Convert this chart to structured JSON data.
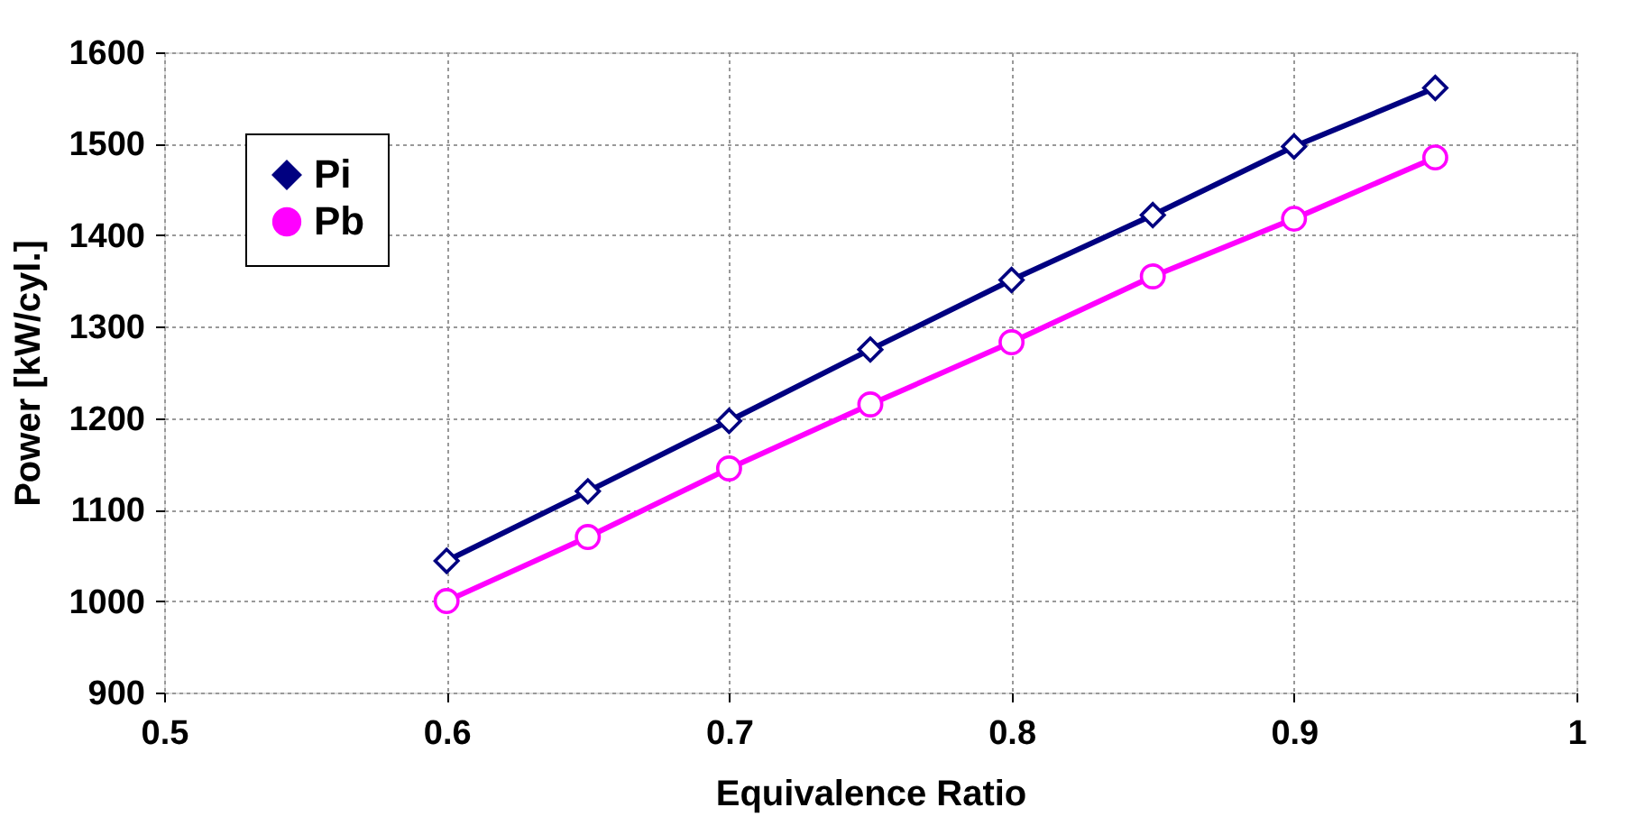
{
  "chart_data": {
    "type": "line",
    "xlabel": "Equivalence Ratio",
    "ylabel": "Power [kW/cyl.]",
    "x": [
      0.6,
      0.65,
      0.7,
      0.75,
      0.8,
      0.85,
      0.9,
      0.95
    ],
    "series": [
      {
        "name": "Pi",
        "color": "#000080",
        "marker": "diamond",
        "values": [
          1044,
          1120,
          1197,
          1275,
          1351,
          1422,
          1497,
          1561
        ]
      },
      {
        "name": "Pb",
        "color": "#ff00ff",
        "marker": "circle",
        "values": [
          1000,
          1070,
          1145,
          1215,
          1283,
          1355,
          1418,
          1485
        ]
      }
    ],
    "xlim": [
      0.5,
      1
    ],
    "xticks": [
      0.5,
      0.6,
      0.7,
      0.8,
      0.9,
      1
    ],
    "ylim": [
      900,
      1600
    ],
    "yticks": [
      900,
      1000,
      1100,
      1200,
      1300,
      1400,
      1500,
      1600
    ],
    "grid": true,
    "legend": "top left",
    "line_style": "solid"
  }
}
